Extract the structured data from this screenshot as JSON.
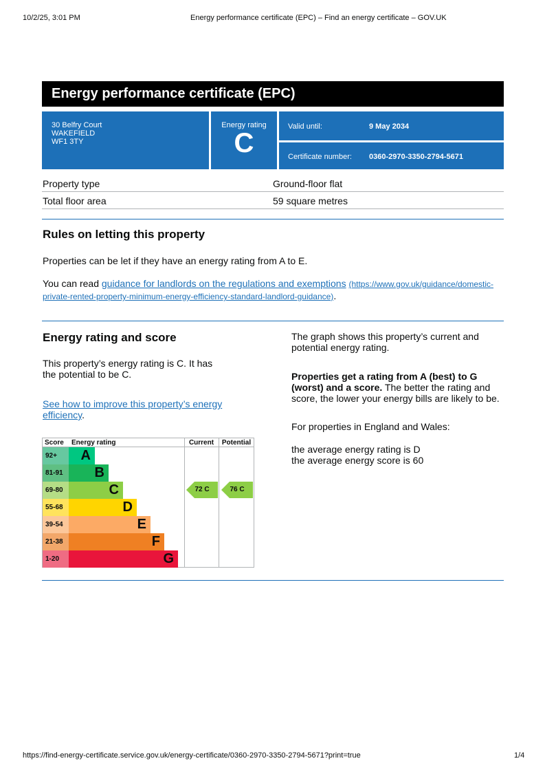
{
  "browser": {
    "datetime": "10/2/25, 3:01 PM",
    "title": "Energy performance certificate (EPC) – Find an energy certificate – GOV.UK",
    "url": "https://find-energy-certificate.service.gov.uk/energy-certificate/0360-2970-3350-2794-5671?print=true",
    "page": "1/4"
  },
  "header": {
    "title": "Energy performance certificate (EPC)"
  },
  "address": {
    "line1": "30 Belfry Court",
    "line2": "WAKEFIELD",
    "line3": "WF1 3TY"
  },
  "rating_box": {
    "label": "Energy rating",
    "value": "C"
  },
  "valid": {
    "label": "Valid until:",
    "value": "9 May 2034"
  },
  "certificate": {
    "label": "Certificate number:",
    "value": "0360-2970-3350-2794-5671"
  },
  "property": [
    {
      "label": "Property type",
      "value": "Ground-floor flat"
    },
    {
      "label": "Total floor area",
      "value": "59 square metres"
    }
  ],
  "letting": {
    "heading": "Rules on letting this property",
    "p1": "Properties can be let if they have an energy rating from A to E.",
    "p2_prefix": "You can read ",
    "link": "guidance for landlords on the regulations and exemptions",
    "link_url_text": "(https://www.gov.uk/guidance/domestic-private-rented-property-minimum-energy-efficiency-standard-landlord-guidance)",
    "p2_suffix": "."
  },
  "score": {
    "heading": "Energy rating and score",
    "p1": "This property’s energy rating is C. It has the potential to be C.",
    "link": "See how to improve this property’s energy efficiency",
    "link_suffix": ".",
    "right_p1": "The graph shows this property’s current and potential energy rating.",
    "right_bold": "Properties get a rating from A (best) to G (worst) and a score.",
    "right_p2": " The better the rating and score, the lower your energy bills are likely to be.",
    "right_p3": "For properties in England and Wales:",
    "avg1": "the average energy rating is D",
    "avg2": "the average energy score is 60"
  },
  "chart": {
    "headers": {
      "score": "Score",
      "rating": "Energy rating",
      "current": "Current",
      "potential": "Potential"
    },
    "bands": [
      {
        "letter": "A",
        "range": "92+",
        "color": "#00c781",
        "light": "#67c8a0"
      },
      {
        "letter": "B",
        "range": "81-91",
        "color": "#19b459",
        "light": "#5fbf83"
      },
      {
        "letter": "C",
        "range": "69-80",
        "color": "#8dce46",
        "light": "#b5dd86"
      },
      {
        "letter": "D",
        "range": "55-68",
        "color": "#ffd500",
        "light": "#ffe35c"
      },
      {
        "letter": "E",
        "range": "39-54",
        "color": "#fcaa65",
        "light": "#fcc79a"
      },
      {
        "letter": "F",
        "range": "21-38",
        "color": "#ef8023",
        "light": "#f2a76a"
      },
      {
        "letter": "G",
        "range": "1-20",
        "color": "#e9153b",
        "light": "#ef6c83"
      }
    ],
    "current": {
      "label": "72  C",
      "score": 72,
      "band": "C"
    },
    "potential": {
      "label": "76  C",
      "score": 76,
      "band": "C"
    }
  }
}
